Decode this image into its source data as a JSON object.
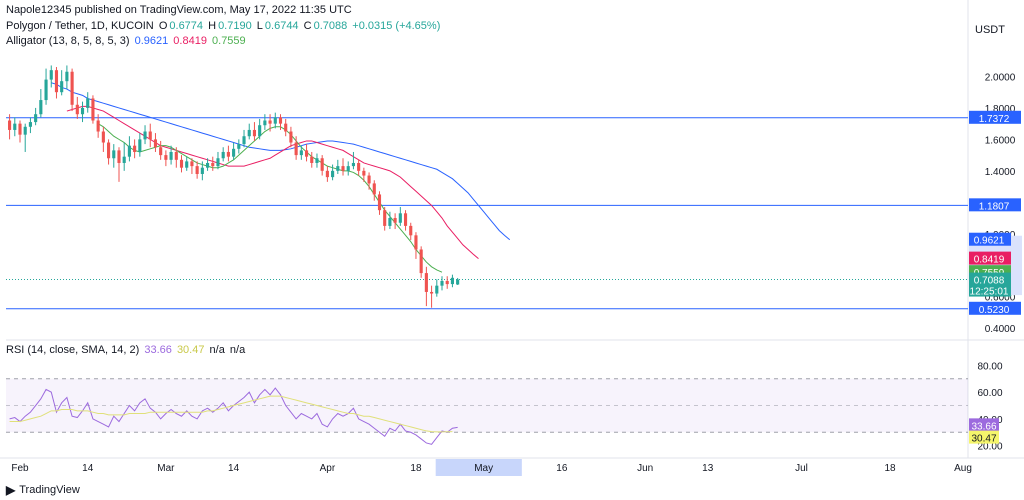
{
  "header": {
    "published": "Napole12345 published on TradingView.com, May 17, 2022 11:35 UTC",
    "symbol": "Polygon / Tether, 1D, KUCOIN",
    "ohlc": {
      "o_label": "O",
      "o": "0.6774",
      "h_label": "H",
      "h": "0.7190",
      "l_label": "L",
      "l": "0.6744",
      "c_label": "C",
      "c": "0.7088",
      "change": "+0.0315 (+4.65%)"
    },
    "alligator_label": "Alligator (13, 8, 5, 8, 5, 3)",
    "alligator_values": {
      "jaw": "0.9621",
      "teeth": "0.8419",
      "lips": "0.7559"
    },
    "rsi_label": "RSI (14, close, SMA, 14, 2)",
    "rsi_values": {
      "rsi": "33.66",
      "sma": "30.47",
      "na1": "n/a",
      "na2": "n/a"
    },
    "currency": "USDT"
  },
  "footer": {
    "brand": "TradingView"
  },
  "colors": {
    "up": "#26a69a",
    "down": "#ef5350",
    "jaw": "#2962ff",
    "teeth": "#e91e63",
    "lips": "#4caf50",
    "rsi": "#9c6ade",
    "rsi_sma": "#e0e07a"
  },
  "chart_data": [
    {
      "type": "candlestick",
      "title": "Polygon / Tether, 1D, KUCOIN",
      "y_ticks": [
        "2.0000",
        "1.8000",
        "1.6000",
        "1.4000",
        "1.2000",
        "1.0000",
        "0.8000",
        "0.6000",
        "0.4000"
      ],
      "y_tick_values": [
        2.0,
        1.8,
        1.6,
        1.4,
        1.2,
        1.0,
        0.8,
        0.6,
        0.4
      ],
      "ylim": [
        0.35,
        2.2
      ],
      "x_ticks": [
        "Feb",
        "14",
        "Mar",
        "14",
        "Apr",
        "18",
        "May",
        "16",
        "Jun",
        "13",
        "Jul",
        "18",
        "Aug"
      ],
      "x_tick_dates": [
        "2022-02-01",
        "2022-02-14",
        "2022-03-01",
        "2022-03-14",
        "2022-04-01",
        "2022-04-18",
        "2022-05-01",
        "2022-05-16",
        "2022-06-01",
        "2022-06-13",
        "2022-07-01",
        "2022-07-18",
        "2022-08-01"
      ],
      "start_date": "2022-01-30",
      "highlight_range": [
        "2022-05-01",
        "2022-05-16"
      ],
      "candles": [
        [
          1.72,
          1.66,
          1.76,
          1.6
        ],
        [
          1.66,
          1.7,
          1.74,
          1.62
        ],
        [
          1.7,
          1.63,
          1.72,
          1.58
        ],
        [
          1.63,
          1.68,
          1.7,
          1.52
        ],
        [
          1.68,
          1.71,
          1.74,
          1.64
        ],
        [
          1.71,
          1.76,
          1.8,
          1.69
        ],
        [
          1.76,
          1.85,
          1.92,
          1.74
        ],
        [
          1.85,
          1.98,
          2.05,
          1.82
        ],
        [
          1.98,
          2.04,
          2.07,
          1.93
        ],
        [
          2.04,
          1.9,
          2.06,
          1.86
        ],
        [
          1.9,
          1.97,
          2.04,
          1.88
        ],
        [
          1.97,
          2.03,
          2.07,
          1.92
        ],
        [
          2.03,
          1.82,
          2.05,
          1.78
        ],
        [
          1.82,
          1.76,
          1.87,
          1.73
        ],
        [
          1.76,
          1.8,
          1.84,
          1.71
        ],
        [
          1.8,
          1.86,
          1.9,
          1.77
        ],
        [
          1.86,
          1.72,
          1.88,
          1.7
        ],
        [
          1.72,
          1.65,
          1.76,
          1.61
        ],
        [
          1.65,
          1.58,
          1.68,
          1.52
        ],
        [
          1.58,
          1.48,
          1.6,
          1.44
        ],
        [
          1.48,
          1.53,
          1.57,
          1.42
        ],
        [
          1.53,
          1.45,
          1.55,
          1.33
        ],
        [
          1.45,
          1.49,
          1.58,
          1.4
        ],
        [
          1.49,
          1.56,
          1.62,
          1.46
        ],
        [
          1.56,
          1.52,
          1.6,
          1.48
        ],
        [
          1.52,
          1.6,
          1.64,
          1.49
        ],
        [
          1.6,
          1.65,
          1.69,
          1.57
        ],
        [
          1.65,
          1.6,
          1.7,
          1.55
        ],
        [
          1.6,
          1.55,
          1.64,
          1.52
        ],
        [
          1.55,
          1.5,
          1.59,
          1.47
        ],
        [
          1.5,
          1.47,
          1.53,
          1.43
        ],
        [
          1.47,
          1.52,
          1.56,
          1.44
        ],
        [
          1.52,
          1.47,
          1.55,
          1.42
        ],
        [
          1.47,
          1.42,
          1.5,
          1.39
        ],
        [
          1.42,
          1.46,
          1.49,
          1.4
        ],
        [
          1.46,
          1.43,
          1.48,
          1.38
        ],
        [
          1.43,
          1.38,
          1.46,
          1.35
        ],
        [
          1.38,
          1.42,
          1.46,
          1.34
        ],
        [
          1.42,
          1.45,
          1.48,
          1.4
        ],
        [
          1.45,
          1.43,
          1.49,
          1.4
        ],
        [
          1.43,
          1.48,
          1.52,
          1.41
        ],
        [
          1.48,
          1.52,
          1.55,
          1.46
        ],
        [
          1.52,
          1.49,
          1.56,
          1.46
        ],
        [
          1.49,
          1.54,
          1.58,
          1.47
        ],
        [
          1.54,
          1.57,
          1.6,
          1.51
        ],
        [
          1.57,
          1.62,
          1.66,
          1.55
        ],
        [
          1.62,
          1.66,
          1.7,
          1.6
        ],
        [
          1.66,
          1.62,
          1.71,
          1.59
        ],
        [
          1.62,
          1.69,
          1.73,
          1.6
        ],
        [
          1.69,
          1.72,
          1.76,
          1.66
        ],
        [
          1.72,
          1.7,
          1.76,
          1.65
        ],
        [
          1.7,
          1.74,
          1.77,
          1.67
        ],
        [
          1.74,
          1.7,
          1.76,
          1.66
        ],
        [
          1.7,
          1.65,
          1.73,
          1.62
        ],
        [
          1.65,
          1.58,
          1.68,
          1.55
        ],
        [
          1.58,
          1.5,
          1.62,
          1.47
        ],
        [
          1.5,
          1.53,
          1.56,
          1.47
        ],
        [
          1.53,
          1.49,
          1.57,
          1.46
        ],
        [
          1.49,
          1.45,
          1.52,
          1.42
        ],
        [
          1.45,
          1.48,
          1.51,
          1.42
        ],
        [
          1.48,
          1.4,
          1.5,
          1.37
        ],
        [
          1.4,
          1.36,
          1.43,
          1.33
        ],
        [
          1.36,
          1.4,
          1.44,
          1.34
        ],
        [
          1.4,
          1.43,
          1.47,
          1.38
        ],
        [
          1.43,
          1.4,
          1.48,
          1.37
        ],
        [
          1.4,
          1.43,
          1.46,
          1.37
        ],
        [
          1.43,
          1.45,
          1.52,
          1.41
        ],
        [
          1.45,
          1.4,
          1.47,
          1.37
        ],
        [
          1.4,
          1.37,
          1.42,
          1.33
        ],
        [
          1.37,
          1.32,
          1.39,
          1.28
        ],
        [
          1.32,
          1.25,
          1.34,
          1.21
        ],
        [
          1.25,
          1.15,
          1.27,
          1.12
        ],
        [
          1.15,
          1.05,
          1.17,
          1.02
        ],
        [
          1.05,
          1.1,
          1.14,
          1.03
        ],
        [
          1.1,
          1.07,
          1.13,
          1.03
        ],
        [
          1.07,
          1.13,
          1.17,
          1.05
        ],
        [
          1.13,
          1.05,
          1.15,
          1.02
        ],
        [
          1.05,
          0.99,
          1.07,
          0.96
        ],
        [
          0.99,
          0.9,
          1.01,
          0.84
        ],
        [
          0.9,
          0.75,
          0.92,
          0.72
        ],
        [
          0.75,
          0.63,
          0.79,
          0.54
        ],
        [
          0.63,
          0.62,
          0.67,
          0.53
        ],
        [
          0.62,
          0.67,
          0.71,
          0.6
        ],
        [
          0.67,
          0.7,
          0.73,
          0.64
        ],
        [
          0.7,
          0.68,
          0.73,
          0.65
        ],
        [
          0.68,
          0.72,
          0.74,
          0.66
        ],
        [
          0.6774,
          0.7088,
          0.719,
          0.6744
        ]
      ],
      "alligator": {
        "jaw": {
          "name": "Jaw",
          "start_index": 0,
          "values": [
            1.96,
            1.95,
            1.93,
            1.92,
            1.9,
            1.89,
            1.88,
            1.86,
            1.85,
            1.84,
            1.83,
            1.82,
            1.81,
            1.8,
            1.79,
            1.78,
            1.77,
            1.76,
            1.75,
            1.74,
            1.73,
            1.72,
            1.71,
            1.7,
            1.69,
            1.68,
            1.67,
            1.66,
            1.65,
            1.64,
            1.63,
            1.62,
            1.61,
            1.6,
            1.59,
            1.58,
            1.57,
            1.56,
            1.55,
            1.545,
            1.54,
            1.535,
            1.53,
            1.53,
            1.53,
            1.535,
            1.54,
            1.55,
            1.56,
            1.57,
            1.575,
            1.58,
            1.585,
            1.59,
            1.59,
            1.585,
            1.58,
            1.575,
            1.57,
            1.56,
            1.55,
            1.54,
            1.53,
            1.52,
            1.51,
            1.5,
            1.49,
            1.48,
            1.47,
            1.46,
            1.45,
            1.44,
            1.43,
            1.42,
            1.41,
            1.39,
            1.37,
            1.35,
            1.32,
            1.29,
            1.26,
            1.22,
            1.18,
            1.14,
            1.1,
            1.06,
            1.02,
            0.99,
            0.9621
          ]
        },
        "teeth": {
          "name": "Teeth",
          "start_index": 6,
          "values": [
            1.78,
            1.79,
            1.8,
            1.81,
            1.81,
            1.8,
            1.79,
            1.78,
            1.76,
            1.74,
            1.72,
            1.7,
            1.68,
            1.66,
            1.64,
            1.62,
            1.6,
            1.58,
            1.56,
            1.55,
            1.54,
            1.53,
            1.52,
            1.51,
            1.5,
            1.49,
            1.48,
            1.47,
            1.46,
            1.45,
            1.44,
            1.43,
            1.43,
            1.43,
            1.43,
            1.44,
            1.45,
            1.46,
            1.47,
            1.48,
            1.5,
            1.52,
            1.54,
            1.56,
            1.57,
            1.58,
            1.59,
            1.59,
            1.58,
            1.57,
            1.56,
            1.55,
            1.54,
            1.53,
            1.51,
            1.49,
            1.47,
            1.45,
            1.44,
            1.43,
            1.42,
            1.41,
            1.4,
            1.38,
            1.36,
            1.33,
            1.3,
            1.27,
            1.24,
            1.21,
            1.18,
            1.14,
            1.1,
            1.05,
            1.01,
            0.97,
            0.93,
            0.9,
            0.87,
            0.8419
          ]
        },
        "lips": {
          "name": "Lips",
          "start_index": 14,
          "values": [
            1.7,
            1.68,
            1.65,
            1.62,
            1.6,
            1.58,
            1.55,
            1.53,
            1.52,
            1.53,
            1.54,
            1.55,
            1.56,
            1.56,
            1.55,
            1.53,
            1.51,
            1.49,
            1.47,
            1.45,
            1.44,
            1.43,
            1.42,
            1.42,
            1.43,
            1.45,
            1.47,
            1.5,
            1.53,
            1.56,
            1.59,
            1.62,
            1.65,
            1.67,
            1.68,
            1.68,
            1.66,
            1.63,
            1.59,
            1.55,
            1.52,
            1.49,
            1.47,
            1.45,
            1.43,
            1.42,
            1.41,
            1.4,
            1.4,
            1.39,
            1.37,
            1.34,
            1.3,
            1.25,
            1.2,
            1.15,
            1.11,
            1.07,
            1.03,
            0.99,
            0.95,
            0.9,
            0.86,
            0.82,
            0.79,
            0.77,
            0.7559
          ]
        }
      },
      "horizontal_lines": [
        {
          "label": "1.7372",
          "value": 1.7372
        },
        {
          "label": "1.1807",
          "value": 1.1807
        },
        {
          "label": "0.5230",
          "value": 0.523
        }
      ],
      "price_labels": [
        {
          "label": "0.9621",
          "value": 0.9621,
          "series": "jaw"
        },
        {
          "label": "0.8419",
          "value": 0.8419,
          "series": "teeth"
        },
        {
          "label": "0.7559",
          "value": 0.7559,
          "series": "lips"
        },
        {
          "label": "0.7088",
          "value": 0.7088,
          "series": "last",
          "countdown": "12:25:01"
        }
      ]
    },
    {
      "type": "line",
      "title": "RSI (14, close, SMA, 14, 2)",
      "y_ticks": [
        "80.00",
        "60.00",
        "40.00",
        "20.00"
      ],
      "y_tick_values": [
        80,
        60,
        40,
        20
      ],
      "ylim": [
        13,
        90
      ],
      "bands": {
        "upper": 70,
        "middle": 50,
        "lower": 30
      },
      "series": [
        {
          "name": "RSI",
          "start_index": 0,
          "values": [
            40,
            41,
            38,
            42,
            45,
            50,
            55,
            62,
            60,
            45,
            52,
            56,
            42,
            41,
            46,
            52,
            40,
            38,
            36,
            34,
            42,
            38,
            44,
            50,
            46,
            52,
            55,
            48,
            45,
            40,
            44,
            47,
            44,
            42,
            46,
            42,
            40,
            46,
            48,
            45,
            48,
            52,
            46,
            50,
            53,
            56,
            60,
            52,
            58,
            62,
            58,
            63,
            58,
            50,
            45,
            40,
            44,
            42,
            40,
            44,
            36,
            34,
            40,
            44,
            42,
            44,
            48,
            40,
            38,
            36,
            33,
            30,
            27,
            33,
            31,
            36,
            31,
            30,
            28,
            25,
            22,
            21,
            26,
            31,
            30,
            33,
            33.66
          ]
        },
        {
          "name": "SMA",
          "start_index": 0,
          "values": [
            38,
            38,
            38,
            39,
            40,
            41,
            42,
            44,
            46,
            46,
            47,
            47,
            47,
            46,
            46,
            46,
            45,
            44,
            44,
            43,
            43,
            43,
            43,
            44,
            44,
            44,
            44,
            45,
            45,
            45,
            45,
            45,
            45,
            45,
            45,
            45,
            45,
            45,
            46,
            46,
            47,
            48,
            49,
            50,
            51,
            52,
            53,
            54,
            55,
            56,
            57,
            57,
            57,
            56,
            55,
            54,
            53,
            52,
            51,
            50,
            49,
            48,
            47,
            46,
            45,
            44,
            44,
            43,
            42,
            42,
            41,
            40,
            39,
            38,
            37,
            36,
            35,
            34,
            33,
            32,
            31,
            30.5,
            30.3,
            30.3,
            30.4,
            30.47
          ]
        }
      ]
    }
  ]
}
